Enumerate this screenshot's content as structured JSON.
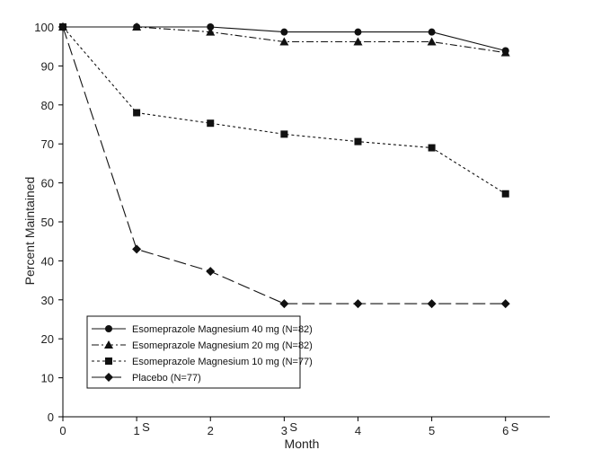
{
  "chart_data": {
    "type": "line",
    "title": "",
    "xlabel": "Month",
    "ylabel": "Percent Maintained",
    "xlim": [
      0,
      6.6
    ],
    "ylim": [
      0,
      100
    ],
    "x_ticks": [
      {
        "value": 0,
        "label": "0",
        "sup": ""
      },
      {
        "value": 1,
        "label": "1",
        "sup": "S"
      },
      {
        "value": 2,
        "label": "2",
        "sup": ""
      },
      {
        "value": 3,
        "label": "3",
        "sup": "S"
      },
      {
        "value": 4,
        "label": "4",
        "sup": ""
      },
      {
        "value": 5,
        "label": "5",
        "sup": ""
      },
      {
        "value": 6,
        "label": "6",
        "sup": "S"
      }
    ],
    "y_ticks": [
      0,
      10,
      20,
      30,
      40,
      50,
      60,
      70,
      80,
      90,
      100
    ],
    "legend_position": "bottom-left",
    "series": [
      {
        "name": "Esomeprazole Magnesium 40 mg (N=82)",
        "marker": "circle",
        "dash": "none",
        "x": [
          0,
          1,
          2,
          3,
          4,
          5,
          6
        ],
        "values": [
          100,
          100,
          100,
          98.7,
          98.7,
          98.7,
          93.9
        ]
      },
      {
        "name": "Esomeprazole Magnesium 20 mg (N=82)",
        "marker": "triangle",
        "dash": "dashdot",
        "x": [
          0,
          1,
          2,
          3,
          4,
          5,
          6
        ],
        "values": [
          100,
          100,
          98.7,
          96.2,
          96.2,
          96.2,
          93.4
        ]
      },
      {
        "name": "Esomeprazole Magnesium 10 mg (N=77)",
        "marker": "square",
        "dash": "dotted",
        "x": [
          0,
          1,
          2,
          3,
          4,
          5,
          6
        ],
        "values": [
          100,
          78,
          75.3,
          72.5,
          70.6,
          69,
          57.2
        ]
      },
      {
        "name": "Placebo (N=77)",
        "marker": "diamond",
        "dash": "longdash",
        "x": [
          0,
          1,
          2,
          3,
          4,
          5,
          6
        ],
        "values": [
          100,
          43,
          37.3,
          29,
          29,
          29,
          29
        ]
      }
    ]
  }
}
